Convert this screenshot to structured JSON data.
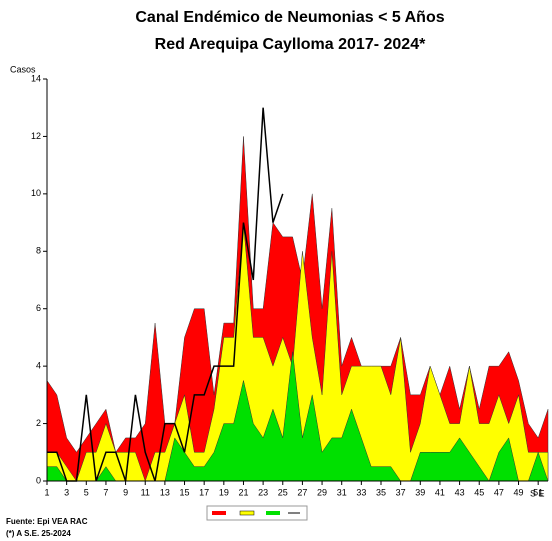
{
  "chart_data": {
    "type": "area",
    "title": "Canal Endémico de Neumonias < 5 Años",
    "subtitle": "Red Arequipa Caylloma 2017- 2024*",
    "y_label": "Casos",
    "x_label": "S E",
    "source": "Fuente: Epi VEA RAC",
    "note": "(*) A S.E. 25-2024",
    "x": [
      1,
      2,
      3,
      4,
      5,
      6,
      7,
      8,
      9,
      10,
      11,
      12,
      13,
      14,
      15,
      16,
      17,
      18,
      19,
      20,
      21,
      22,
      23,
      24,
      25,
      26,
      27,
      28,
      29,
      30,
      31,
      32,
      33,
      34,
      35,
      36,
      37,
      38,
      39,
      40,
      41,
      42,
      43,
      44,
      45,
      46,
      47,
      48,
      49,
      50,
      51,
      52
    ],
    "xlim": [
      1,
      52
    ],
    "xticks": [
      1,
      3,
      5,
      7,
      9,
      11,
      13,
      15,
      17,
      19,
      21,
      23,
      25,
      27,
      29,
      31,
      33,
      35,
      37,
      39,
      41,
      43,
      45,
      47,
      49,
      51
    ],
    "ylim": [
      0,
      14
    ],
    "yticks": [
      0,
      2,
      4,
      6,
      8,
      10,
      12,
      14
    ],
    "series": [
      {
        "color": "#ff0000",
        "values": [
          3.5,
          3,
          1.5,
          1,
          1.5,
          2,
          2.5,
          1,
          1.5,
          1.5,
          2,
          5.5,
          2,
          2,
          5,
          6,
          6,
          3,
          5.5,
          5.5,
          12,
          6,
          6,
          9,
          8.5,
          8.5,
          7,
          10,
          6,
          9.5,
          4,
          5,
          4,
          4,
          4,
          4,
          5,
          3,
          3,
          4,
          3,
          4,
          2.5,
          4,
          2.5,
          4,
          4,
          4.5,
          3.5,
          2,
          1.5,
          2.5
        ]
      },
      {
        "color": "#ffff00",
        "values": [
          1,
          1,
          0.5,
          0,
          1,
          1,
          2,
          1,
          1,
          1,
          0,
          1,
          1,
          2,
          3,
          1,
          1,
          2.5,
          5,
          5,
          9,
          5,
          5,
          4,
          5,
          4,
          8,
          5,
          3,
          8,
          3,
          4,
          4,
          4,
          4,
          3,
          5,
          1,
          2,
          4,
          3,
          2,
          2,
          4,
          2,
          2,
          3,
          2,
          3,
          1,
          1,
          1
        ]
      },
      {
        "color": "#00e000",
        "values": [
          0.5,
          0.5,
          0,
          0,
          0,
          0,
          0.5,
          0,
          0,
          0,
          0,
          0,
          0,
          1.5,
          1,
          0.5,
          0.5,
          1,
          2,
          2,
          3.5,
          2,
          1.5,
          2.5,
          1.5,
          4.5,
          1.5,
          3,
          1,
          1.5,
          1.5,
          2.5,
          1.5,
          0.5,
          0.5,
          0.5,
          0,
          0,
          1,
          1,
          1,
          1,
          1.5,
          1,
          0.5,
          0,
          1,
          1.5,
          0,
          0,
          1,
          0
        ]
      },
      {
        "color": "#000000",
        "line": true,
        "values": [
          1,
          1,
          0,
          0,
          3,
          0,
          1,
          1,
          0,
          3,
          1,
          0,
          2,
          2,
          1,
          3,
          3,
          4,
          4,
          4,
          9,
          7,
          13,
          9,
          10,
          null,
          null,
          null,
          null,
          null,
          null,
          null,
          null,
          null,
          null,
          null,
          null,
          null,
          null,
          null,
          null,
          null,
          null,
          null,
          null,
          null,
          null,
          null,
          null,
          null,
          null,
          null
        ]
      }
    ]
  }
}
